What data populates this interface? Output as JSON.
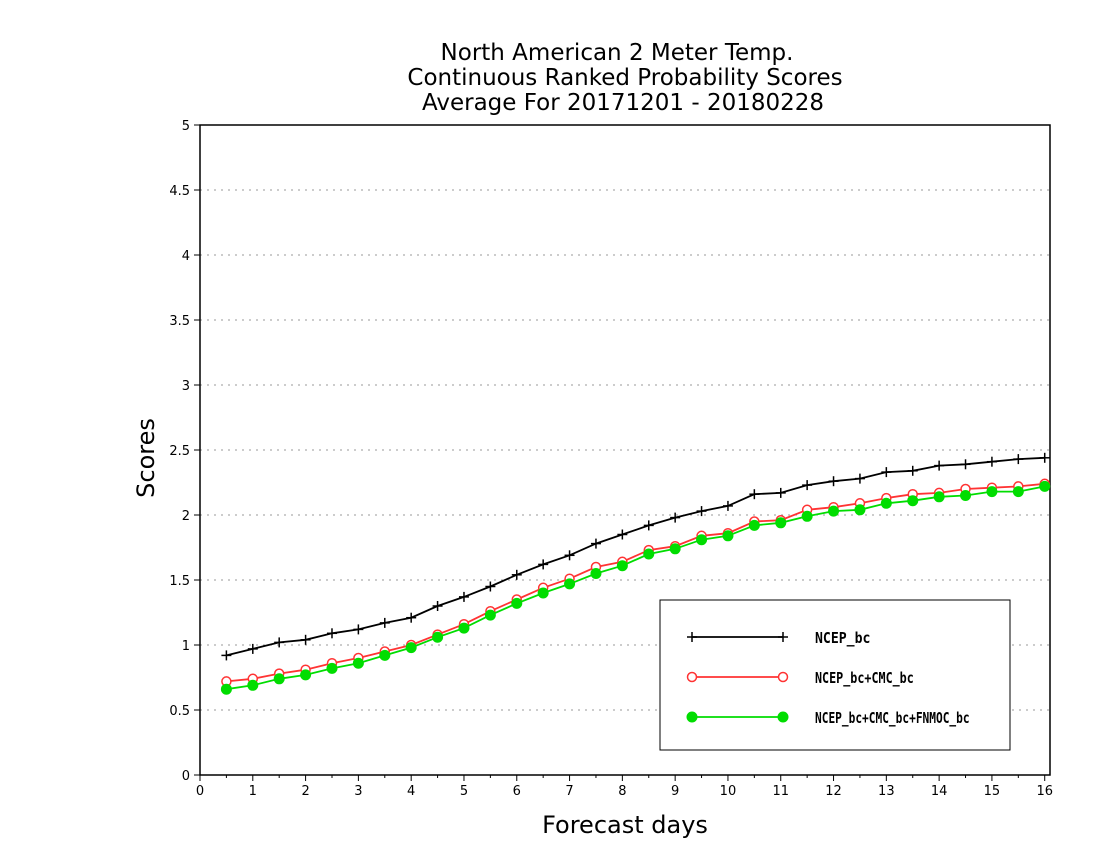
{
  "chart_data": {
    "type": "line",
    "title_lines": [
      "North American 2 Meter Temp.",
      "Continuous Ranked Probability Scores",
      "Average For 20171201 - 20180228"
    ],
    "xlabel": "Forecast days",
    "ylabel": "Scores",
    "xlim": [
      0,
      16.1
    ],
    "ylim": [
      0,
      5
    ],
    "x_ticks": [
      "0",
      "1",
      "2",
      "3",
      "4",
      "5",
      "6",
      "7",
      "8",
      "9",
      "10",
      "11",
      "12",
      "13",
      "14",
      "15",
      "16"
    ],
    "y_ticks": [
      "0",
      "0.5",
      "1",
      "1.5",
      "2",
      "2.5",
      "3",
      "3.5",
      "4",
      "4.5",
      "5"
    ],
    "grid": "horizontal dotted",
    "legend_position": "bottom-right",
    "x": [
      0.5,
      1,
      1.5,
      2,
      2.5,
      3,
      3.5,
      4,
      4.5,
      5,
      5.5,
      6,
      6.5,
      7,
      7.5,
      8,
      8.5,
      9,
      9.5,
      10,
      10.5,
      11,
      11.5,
      12,
      12.5,
      13,
      13.5,
      14,
      14.5,
      15,
      15.5,
      16
    ],
    "series": [
      {
        "name": "NCEP_bc",
        "color": "#000000",
        "marker": "plus",
        "values": [
          0.92,
          0.97,
          1.02,
          1.04,
          1.09,
          1.12,
          1.17,
          1.21,
          1.3,
          1.37,
          1.45,
          1.54,
          1.62,
          1.69,
          1.78,
          1.85,
          1.92,
          1.98,
          2.03,
          2.07,
          2.16,
          2.17,
          2.23,
          2.26,
          2.28,
          2.33,
          2.34,
          2.38,
          2.39,
          2.41,
          2.43,
          2.44
        ]
      },
      {
        "name": "NCEP_bc+CMC_bc",
        "color": "#ff3333",
        "marker": "open-circle",
        "values": [
          0.72,
          0.74,
          0.78,
          0.81,
          0.86,
          0.9,
          0.95,
          1.0,
          1.08,
          1.16,
          1.26,
          1.35,
          1.44,
          1.51,
          1.6,
          1.64,
          1.73,
          1.76,
          1.84,
          1.86,
          1.95,
          1.96,
          2.04,
          2.06,
          2.09,
          2.13,
          2.16,
          2.17,
          2.2,
          2.21,
          2.22,
          2.24
        ]
      },
      {
        "name": "NCEP_bc+CMC_bc+FNMOC_bc",
        "color": "#00dd00",
        "marker": "filled-circle",
        "values": [
          0.66,
          0.69,
          0.74,
          0.77,
          0.82,
          0.86,
          0.92,
          0.98,
          1.06,
          1.13,
          1.23,
          1.32,
          1.4,
          1.47,
          1.55,
          1.61,
          1.7,
          1.74,
          1.81,
          1.84,
          1.92,
          1.94,
          1.99,
          2.03,
          2.04,
          2.09,
          2.11,
          2.14,
          2.15,
          2.18,
          2.18,
          2.22
        ]
      }
    ]
  }
}
